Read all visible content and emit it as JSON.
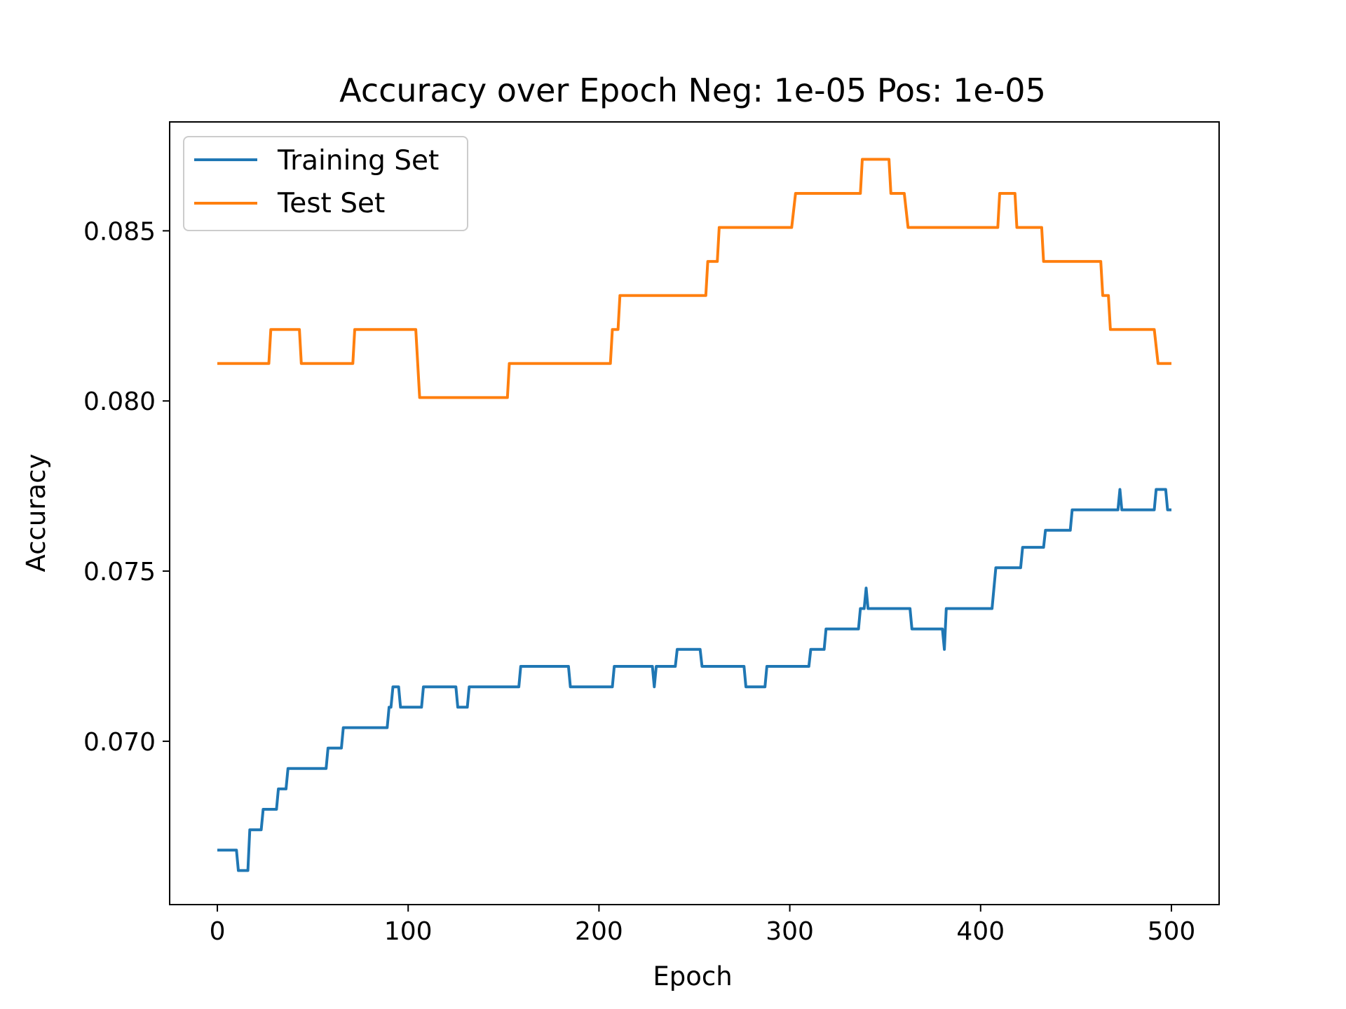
{
  "chart_data": {
    "type": "line",
    "title": "Accuracy over Epoch Neg: 1e-05 Pos: 1e-05",
    "xlabel": "Epoch",
    "ylabel": "Accuracy",
    "xlim": [
      -25,
      525
    ],
    "ylim": [
      0.0652,
      0.0882
    ],
    "xticks": [
      0,
      100,
      200,
      300,
      400,
      500
    ],
    "yticks": [
      0.07,
      0.075,
      0.08,
      0.085
    ],
    "xtick_labels": [
      "0",
      "100",
      "200",
      "300",
      "400",
      "500"
    ],
    "ytick_labels": [
      "0.070",
      "0.075",
      "0.080",
      "0.085"
    ],
    "legend_position": "upper-left",
    "grid": false,
    "series": [
      {
        "name": "Training Set",
        "color": "#1f77b4",
        "points": [
          [
            0,
            0.0668
          ],
          [
            10,
            0.0668
          ],
          [
            11,
            0.0662
          ],
          [
            16,
            0.0662
          ],
          [
            17,
            0.0674
          ],
          [
            23,
            0.0674
          ],
          [
            24,
            0.068
          ],
          [
            31,
            0.068
          ],
          [
            32,
            0.0686
          ],
          [
            36,
            0.0686
          ],
          [
            37,
            0.0692
          ],
          [
            57,
            0.0692
          ],
          [
            58,
            0.0698
          ],
          [
            65,
            0.0698
          ],
          [
            66,
            0.0704
          ],
          [
            89,
            0.0704
          ],
          [
            90,
            0.071
          ],
          [
            91,
            0.071
          ],
          [
            92,
            0.0716
          ],
          [
            95,
            0.0716
          ],
          [
            96,
            0.071
          ],
          [
            107,
            0.071
          ],
          [
            108,
            0.0716
          ],
          [
            125,
            0.0716
          ],
          [
            126,
            0.071
          ],
          [
            131,
            0.071
          ],
          [
            132,
            0.0716
          ],
          [
            158,
            0.0716
          ],
          [
            159,
            0.0722
          ],
          [
            184,
            0.0722
          ],
          [
            185,
            0.0716
          ],
          [
            207,
            0.0716
          ],
          [
            208,
            0.0722
          ],
          [
            228,
            0.0722
          ],
          [
            229,
            0.0716
          ],
          [
            230,
            0.0722
          ],
          [
            240,
            0.0722
          ],
          [
            241,
            0.0727
          ],
          [
            253,
            0.0727
          ],
          [
            254,
            0.0722
          ],
          [
            276,
            0.0722
          ],
          [
            277,
            0.0716
          ],
          [
            287,
            0.0716
          ],
          [
            288,
            0.0722
          ],
          [
            310,
            0.0722
          ],
          [
            311,
            0.0727
          ],
          [
            318,
            0.0727
          ],
          [
            319,
            0.0733
          ],
          [
            336,
            0.0733
          ],
          [
            337,
            0.0739
          ],
          [
            339,
            0.0739
          ],
          [
            340,
            0.0745
          ],
          [
            341,
            0.0739
          ],
          [
            363,
            0.0739
          ],
          [
            364,
            0.0733
          ],
          [
            380,
            0.0733
          ],
          [
            381,
            0.0727
          ],
          [
            382,
            0.0739
          ],
          [
            406,
            0.0739
          ],
          [
            408,
            0.0751
          ],
          [
            421,
            0.0751
          ],
          [
            422,
            0.0757
          ],
          [
            433,
            0.0757
          ],
          [
            434,
            0.0762
          ],
          [
            447,
            0.0762
          ],
          [
            448,
            0.0768
          ],
          [
            472,
            0.0768
          ],
          [
            473,
            0.0774
          ],
          [
            474,
            0.0768
          ],
          [
            491,
            0.0768
          ],
          [
            492,
            0.0774
          ],
          [
            497,
            0.0774
          ],
          [
            498,
            0.0768
          ],
          [
            500,
            0.0768
          ]
        ]
      },
      {
        "name": "Test Set",
        "color": "#ff7f0e",
        "points": [
          [
            0,
            0.0811
          ],
          [
            27,
            0.0811
          ],
          [
            28,
            0.0821
          ],
          [
            43,
            0.0821
          ],
          [
            44,
            0.0811
          ],
          [
            71,
            0.0811
          ],
          [
            72,
            0.0821
          ],
          [
            104,
            0.0821
          ],
          [
            106,
            0.0801
          ],
          [
            152,
            0.0801
          ],
          [
            153,
            0.0811
          ],
          [
            206,
            0.0811
          ],
          [
            207,
            0.0821
          ],
          [
            210,
            0.0821
          ],
          [
            211,
            0.0831
          ],
          [
            256,
            0.0831
          ],
          [
            257,
            0.0841
          ],
          [
            262,
            0.0841
          ],
          [
            263,
            0.0851
          ],
          [
            301,
            0.0851
          ],
          [
            303,
            0.0861
          ],
          [
            337,
            0.0861
          ],
          [
            338,
            0.0871
          ],
          [
            352,
            0.0871
          ],
          [
            353,
            0.0861
          ],
          [
            360,
            0.0861
          ],
          [
            362,
            0.0851
          ],
          [
            409,
            0.0851
          ],
          [
            410,
            0.0861
          ],
          [
            418,
            0.0861
          ],
          [
            419,
            0.0851
          ],
          [
            432,
            0.0851
          ],
          [
            433,
            0.0841
          ],
          [
            463,
            0.0841
          ],
          [
            464,
            0.0831
          ],
          [
            467,
            0.0831
          ],
          [
            468,
            0.0821
          ],
          [
            491,
            0.0821
          ],
          [
            493,
            0.0811
          ],
          [
            500,
            0.0811
          ]
        ]
      }
    ]
  }
}
